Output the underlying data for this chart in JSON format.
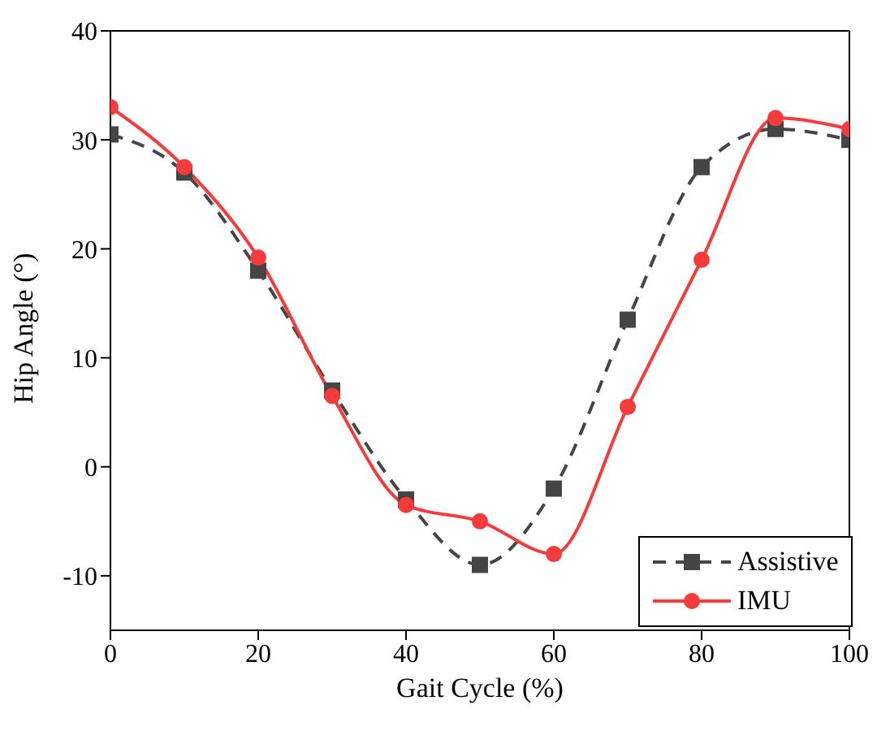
{
  "chart_data": {
    "type": "line",
    "xlabel": "Gait Cycle (%)",
    "ylabel": "Hip Angle (°)",
    "x": [
      0,
      10,
      20,
      30,
      40,
      50,
      60,
      70,
      80,
      90,
      100
    ],
    "xlim": [
      0,
      100
    ],
    "xticks": [
      0,
      20,
      40,
      60,
      80,
      100
    ],
    "ylim": [
      -15,
      40
    ],
    "yticks": [
      -10,
      0,
      10,
      20,
      30,
      40
    ],
    "grid": false,
    "legend": "bottom right",
    "series": [
      {
        "name": "Assistive",
        "color": "#454545",
        "marker": "square",
        "line_style": "dashed",
        "values": [
          30.5,
          27,
          18,
          7,
          -3,
          -9,
          -2,
          13.5,
          27.5,
          31,
          30
        ]
      },
      {
        "name": "IMU",
        "color": "#f53b3b",
        "marker": "circle",
        "line_style": "solid",
        "values": [
          33,
          27.5,
          19.2,
          6.5,
          -3.5,
          -5,
          -8,
          5.5,
          19,
          32,
          31
        ]
      }
    ]
  }
}
